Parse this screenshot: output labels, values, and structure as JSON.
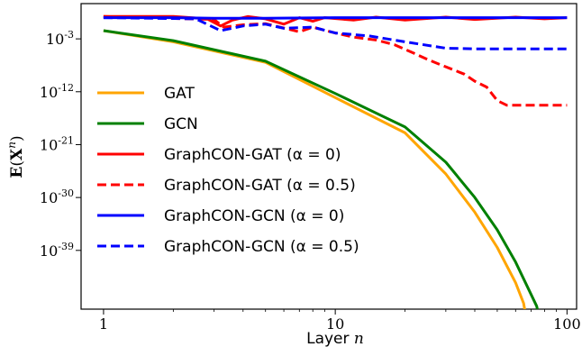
{
  "chart_data": {
    "type": "line",
    "xlabel": "Layer n",
    "ylabel": "E(X^n)",
    "xscale": "log",
    "yscale": "log",
    "xlim": [
      0.8,
      110
    ],
    "ylim_exponent": [
      -49,
      3
    ],
    "x_ticks": [
      {
        "value": 1,
        "label": "1"
      },
      {
        "value": 10,
        "label": "10"
      },
      {
        "value": 100,
        "label": "100"
      }
    ],
    "y_ticks": [
      {
        "exponent": -3,
        "label": "10^-3"
      },
      {
        "exponent": -12,
        "label": "10^-12"
      },
      {
        "exponent": -21,
        "label": "10^-21"
      },
      {
        "exponent": -30,
        "label": "10^-30"
      },
      {
        "exponent": -39,
        "label": "10^-39"
      }
    ],
    "legend_position": "left",
    "series": [
      {
        "name": "GAT",
        "color": "#FFA500",
        "dash": "solid",
        "key": "gat",
        "points": [
          [
            1,
            -1.6
          ],
          [
            2,
            -3.5
          ],
          [
            5,
            -7
          ],
          [
            10,
            -13
          ],
          [
            20,
            -19
          ],
          [
            30,
            -26
          ],
          [
            40,
            -32.5
          ],
          [
            50,
            -38.5
          ],
          [
            60,
            -44.5
          ],
          [
            65,
            -48
          ],
          [
            66,
            -49.5
          ]
        ]
      },
      {
        "name": "GCN",
        "color": "#008000",
        "dash": "solid",
        "key": "gcn",
        "points": [
          [
            1,
            -1.6
          ],
          [
            2,
            -3.3
          ],
          [
            5,
            -6.8
          ],
          [
            10,
            -12.3
          ],
          [
            20,
            -18
          ],
          [
            30,
            -24
          ],
          [
            40,
            -30
          ],
          [
            50,
            -35.5
          ],
          [
            60,
            -41
          ],
          [
            70,
            -46.5
          ],
          [
            74,
            -48.5
          ],
          [
            75,
            -49.5
          ]
        ]
      },
      {
        "name": "GraphCON-GAT (α = 0)",
        "color": "#FF0000",
        "dash": "solid",
        "key": "gc_gat_0",
        "points": [
          [
            1,
            0.8
          ],
          [
            2,
            0.8
          ],
          [
            2.8,
            0.4
          ],
          [
            3.2,
            -0.8
          ],
          [
            3.6,
            0.2
          ],
          [
            4.2,
            0.8
          ],
          [
            5,
            0.4
          ],
          [
            6,
            -0.5
          ],
          [
            7,
            0.6
          ],
          [
            8,
            0
          ],
          [
            9,
            0.6
          ],
          [
            12,
            0.2
          ],
          [
            15,
            0.7
          ],
          [
            20,
            0.2
          ],
          [
            30,
            0.7
          ],
          [
            40,
            0.3
          ],
          [
            60,
            0.7
          ],
          [
            80,
            0.4
          ],
          [
            100,
            0.6
          ]
        ]
      },
      {
        "name": "GraphCON-GAT (α = 0.5)",
        "color": "#FF0000",
        "dash": "dashed",
        "key": "gc_gat_05",
        "points": [
          [
            1,
            0.8
          ],
          [
            3,
            0.3
          ],
          [
            3.3,
            -1
          ],
          [
            4,
            -0.6
          ],
          [
            5,
            -0.4
          ],
          [
            7,
            -1.8
          ],
          [
            8,
            -1
          ],
          [
            10,
            -2
          ],
          [
            12,
            -2.7
          ],
          [
            15,
            -3.2
          ],
          [
            18,
            -4
          ],
          [
            22,
            -5.5
          ],
          [
            25,
            -6.5
          ],
          [
            28,
            -7.3
          ],
          [
            32,
            -8.2
          ],
          [
            36,
            -9
          ],
          [
            40,
            -10.2
          ],
          [
            45,
            -11.2
          ],
          [
            50,
            -13.5
          ],
          [
            55,
            -14.3
          ],
          [
            100,
            -14.3
          ]
        ]
      },
      {
        "name": "GraphCON-GCN (α = 0)",
        "color": "#0000FF",
        "dash": "solid",
        "key": "gc_gcn_0",
        "points": [
          [
            1,
            0.6
          ],
          [
            2,
            0.6
          ],
          [
            3,
            0.5
          ],
          [
            5,
            0.5
          ],
          [
            10,
            0.6
          ],
          [
            20,
            0.6
          ],
          [
            50,
            0.6
          ],
          [
            100,
            0.6
          ]
        ]
      },
      {
        "name": "GraphCON-GCN (α = 0.5)",
        "color": "#0000FF",
        "dash": "dashed",
        "key": "gc_gcn_05",
        "points": [
          [
            1,
            0.6
          ],
          [
            2.5,
            0.4
          ],
          [
            3.2,
            -1.6
          ],
          [
            4,
            -0.8
          ],
          [
            5,
            -0.5
          ],
          [
            6,
            -1.2
          ],
          [
            8,
            -1
          ],
          [
            10,
            -2
          ],
          [
            14,
            -2.5
          ],
          [
            20,
            -3.5
          ],
          [
            30,
            -4.6
          ],
          [
            40,
            -4.7
          ],
          [
            100,
            -4.7
          ]
        ]
      }
    ]
  }
}
